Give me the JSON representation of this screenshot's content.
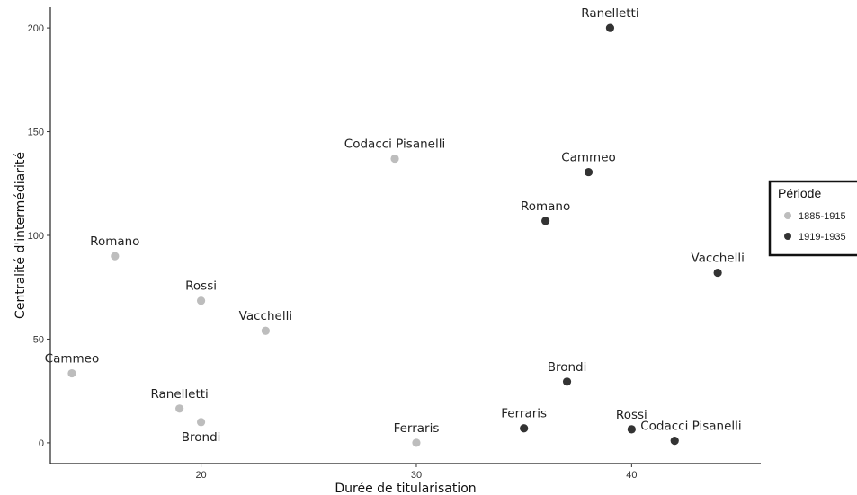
{
  "chart_data": {
    "type": "scatter",
    "xlabel": "Durée de titularisation",
    "ylabel": "Centralité d'intermédiarité",
    "xlim": [
      13,
      46
    ],
    "ylim": [
      -10,
      210
    ],
    "x_ticks": [
      20,
      30,
      40
    ],
    "y_ticks": [
      0,
      50,
      100,
      150,
      200
    ],
    "grid": false,
    "legend": {
      "title": "Période",
      "placement": "right"
    },
    "series": [
      {
        "name": "1885-1915",
        "color": "#bdbdbd",
        "points": [
          {
            "label": "Cammeo",
            "x": 14,
            "y": 33.5,
            "label_pos": "above"
          },
          {
            "label": "Romano",
            "x": 16,
            "y": 90,
            "label_pos": "above"
          },
          {
            "label": "Ranelletti",
            "x": 19,
            "y": 16.5,
            "label_pos": "above"
          },
          {
            "label": "Brondi",
            "x": 20,
            "y": 10,
            "label_pos": "below"
          },
          {
            "label": "Rossi",
            "x": 20,
            "y": 68.5,
            "label_pos": "above"
          },
          {
            "label": "Vacchelli",
            "x": 23,
            "y": 54,
            "label_pos": "above"
          },
          {
            "label": "Codacci Pisanelli",
            "x": 29,
            "y": 137,
            "label_pos": "above"
          },
          {
            "label": "Ferraris",
            "x": 30,
            "y": 0,
            "label_pos": "above"
          }
        ]
      },
      {
        "name": "1919-1935",
        "color": "#333333",
        "points": [
          {
            "label": "Ferraris",
            "x": 35,
            "y": 7,
            "label_pos": "above"
          },
          {
            "label": "Romano",
            "x": 36,
            "y": 107,
            "label_pos": "above"
          },
          {
            "label": "Brondi",
            "x": 37,
            "y": 29.5,
            "label_pos": "above"
          },
          {
            "label": "Cammeo",
            "x": 38,
            "y": 130.5,
            "label_pos": "above"
          },
          {
            "label": "Ranelletti",
            "x": 39,
            "y": 200,
            "label_pos": "above"
          },
          {
            "label": "Rossi",
            "x": 40,
            "y": 6.5,
            "label_pos": "above"
          },
          {
            "label": "Codacci Pisanelli",
            "x": 42,
            "y": 1,
            "label_pos": "above-right"
          },
          {
            "label": "Vacchelli",
            "x": 44,
            "y": 82,
            "label_pos": "above"
          }
        ]
      }
    ]
  }
}
